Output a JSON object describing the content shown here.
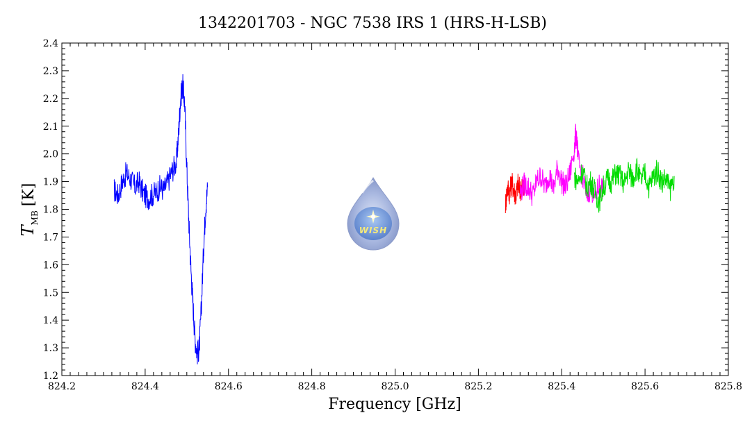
{
  "chart_data": {
    "type": "line",
    "title": "1342201703 - NGC 7538 IRS 1 (HRS-H-LSB)",
    "xlabel": "Frequency [GHz]",
    "ylabel_main": "T",
    "ylabel_sub": "MB",
    "ylabel_unit": "[K]",
    "xlim": [
      824.2,
      825.8
    ],
    "ylim": [
      1.2,
      2.4
    ],
    "xticks": [
      "824.2",
      "824.4",
      "824.6",
      "824.8",
      "825.0",
      "825.2",
      "825.4",
      "825.6",
      "825.8"
    ],
    "yticks": [
      "1.2",
      "1.3",
      "1.4",
      "1.5",
      "1.6",
      "1.7",
      "1.8",
      "1.9",
      "2.0",
      "2.1",
      "2.2",
      "2.3",
      "2.4"
    ],
    "grid": false,
    "logo_text": "WISH",
    "series": [
      {
        "color": "#0000ff",
        "x": [
          824.325,
          824.335,
          824.345,
          824.355,
          824.365,
          824.375,
          824.385,
          824.395,
          824.405,
          824.415,
          824.425,
          824.435,
          824.445,
          824.455,
          824.465,
          824.475,
          824.48,
          824.485,
          824.49,
          824.495,
          824.5,
          824.505,
          824.51,
          824.515,
          824.52,
          824.525,
          824.53,
          824.535,
          824.54,
          824.545,
          824.55
        ],
        "y": [
          1.87,
          1.85,
          1.9,
          1.93,
          1.91,
          1.88,
          1.9,
          1.86,
          1.84,
          1.85,
          1.86,
          1.88,
          1.87,
          1.9,
          1.94,
          1.97,
          2.07,
          2.2,
          2.25,
          2.18,
          1.95,
          1.75,
          1.58,
          1.45,
          1.33,
          1.28,
          1.3,
          1.45,
          1.65,
          1.8,
          1.88
        ]
      },
      {
        "color": "#ff0000",
        "x": [
          825.265,
          825.27,
          825.275,
          825.28,
          825.285,
          825.29,
          825.295,
          825.3,
          825.305,
          825.31
        ],
        "y": [
          1.82,
          1.88,
          1.86,
          1.9,
          1.87,
          1.85,
          1.89,
          1.87,
          1.88,
          1.86
        ]
      },
      {
        "color": "#ff00ff",
        "x": [
          825.3,
          825.31,
          825.32,
          825.33,
          825.34,
          825.35,
          825.36,
          825.37,
          825.38,
          825.39,
          825.4,
          825.41,
          825.42,
          825.43,
          825.435,
          825.44,
          825.45,
          825.46,
          825.47,
          825.48,
          825.49,
          825.5
        ],
        "y": [
          1.86,
          1.89,
          1.88,
          1.85,
          1.9,
          1.92,
          1.88,
          1.93,
          1.87,
          1.95,
          1.9,
          1.88,
          1.93,
          2.02,
          2.08,
          1.97,
          1.92,
          1.85,
          1.88,
          1.84,
          1.89,
          1.87
        ]
      },
      {
        "color": "#00dd00",
        "x": [
          825.43,
          825.44,
          825.45,
          825.46,
          825.47,
          825.48,
          825.49,
          825.5,
          825.51,
          825.52,
          825.53,
          825.54,
          825.55,
          825.56,
          825.57,
          825.58,
          825.59,
          825.6,
          825.61,
          825.62,
          825.63,
          825.64,
          825.65,
          825.66,
          825.67
        ],
        "y": [
          1.92,
          1.9,
          1.94,
          1.88,
          1.9,
          1.86,
          1.83,
          1.88,
          1.91,
          1.9,
          1.93,
          1.92,
          1.89,
          1.94,
          1.91,
          1.95,
          1.9,
          1.93,
          1.88,
          1.92,
          1.94,
          1.9,
          1.91,
          1.87,
          1.92
        ]
      }
    ]
  }
}
